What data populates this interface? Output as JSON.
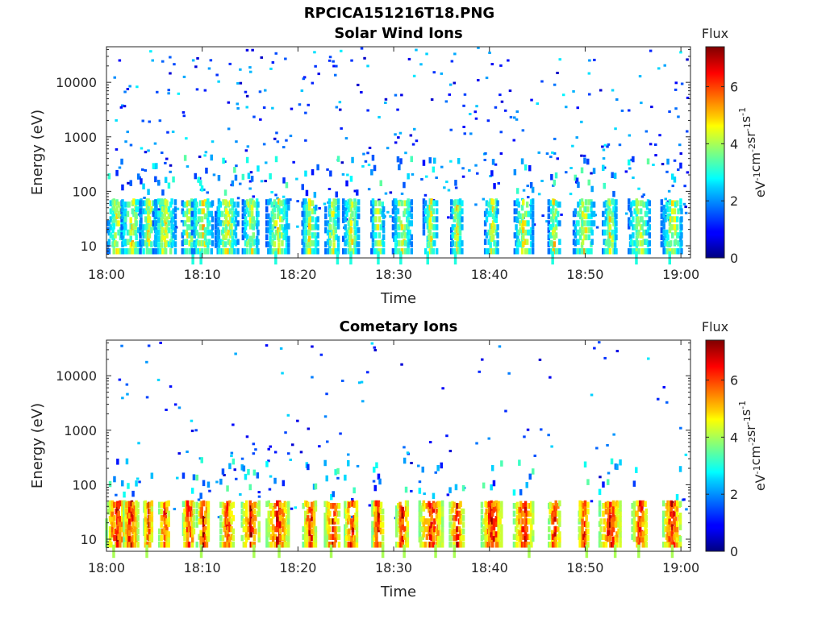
{
  "figure": {
    "title": "RPCICA151216T18.PNG"
  },
  "chart_data": [
    {
      "type": "heatmap",
      "title": "Solar Wind Ions",
      "xlabel": "Time",
      "ylabel": "Energy (eV)",
      "x_ticks": [
        "18:00",
        "18:10",
        "18:20",
        "18:30",
        "18:40",
        "18:50",
        "19:00"
      ],
      "x_range": [
        "18:00",
        "19:01"
      ],
      "y_scale": "log",
      "y_ticks": [
        10,
        100,
        1000,
        10000
      ],
      "y_tick_labels": [
        "10",
        "100",
        "1000",
        "10000"
      ],
      "y_range": [
        6,
        45000
      ],
      "colorbar": {
        "label_top": "Flux",
        "label_side": "eV-1cm-2sr-1s-1",
        "range": [
          0,
          7.4
        ],
        "ticks": [
          0,
          2,
          4,
          6
        ],
        "colormap": "jet"
      },
      "features": {
        "bursts_at_minutes": [
          1.0,
          2.5,
          4.3,
          6.0,
          8.5,
          10.0,
          12.5,
          15.0,
          17.8,
          21.2,
          23.5,
          25.5,
          28.3,
          30.8,
          33.8,
          36.5,
          40.2,
          43.5,
          46.7,
          49.8,
          52.5,
          55.6,
          59.0
        ],
        "low_energy_band_eV": [
          10,
          60
        ],
        "typical_flux": [
          1,
          5
        ]
      }
    },
    {
      "type": "heatmap",
      "title": "Cometary Ions",
      "xlabel": "Time",
      "ylabel": "Energy (eV)",
      "x_ticks": [
        "18:00",
        "18:10",
        "18:20",
        "18:30",
        "18:40",
        "18:50",
        "19:00"
      ],
      "x_range": [
        "18:00",
        "19:01"
      ],
      "y_scale": "log",
      "y_ticks": [
        10,
        100,
        1000,
        10000
      ],
      "y_tick_labels": [
        "10",
        "100",
        "1000",
        "10000"
      ],
      "y_range": [
        6,
        45000
      ],
      "colorbar": {
        "label_top": "Flux",
        "label_side": "eV-1cm-2sr-1s-1",
        "range": [
          0,
          7.4
        ],
        "ticks": [
          0,
          2,
          4,
          6
        ],
        "colormap": "jet"
      },
      "features": {
        "bursts_at_minutes": [
          1.0,
          2.5,
          4.3,
          6.0,
          8.5,
          10.0,
          12.5,
          15.0,
          17.8,
          21.2,
          23.5,
          25.5,
          28.3,
          30.8,
          33.8,
          36.5,
          40.2,
          43.5,
          46.7,
          49.8,
          52.5,
          55.6,
          59.0
        ],
        "low_energy_band_eV": [
          10,
          40
        ],
        "typical_flux": [
          3,
          7
        ]
      }
    }
  ]
}
